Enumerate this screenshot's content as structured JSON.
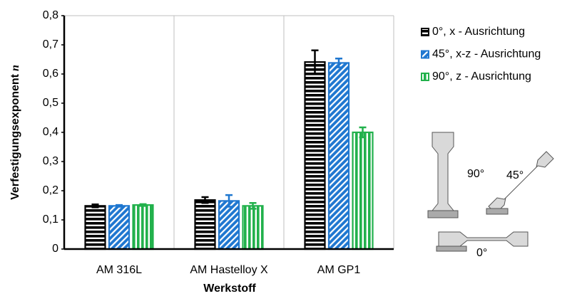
{
  "chart_data": {
    "type": "bar",
    "y_label": "Verfestigungsexponent",
    "y_label_symbol": "n",
    "x_label": "Werkstoff",
    "categories": [
      "AM 316L",
      "AM Hastelloy X",
      "AM GP1"
    ],
    "series": [
      {
        "name": "0°, x - Ausrichtung",
        "color": "#000000",
        "hatch": "horizontal",
        "values": [
          0.148,
          0.168,
          0.641
        ],
        "errors": [
          0.005,
          0.01,
          0.04
        ]
      },
      {
        "name": "45°, x-z - Ausrichtung",
        "color": "#1f77d0",
        "hatch": "diagonal",
        "values": [
          0.148,
          0.165,
          0.638
        ],
        "errors": [
          0.003,
          0.02,
          0.015
        ]
      },
      {
        "name": "90°, z - Ausrichtung",
        "color": "#22b14c",
        "hatch": "vertical",
        "values": [
          0.151,
          0.148,
          0.4
        ],
        "errors": [
          0.003,
          0.01,
          0.017
        ]
      }
    ],
    "ylim": [
      0,
      0.8
    ],
    "yticks": [
      {
        "value": 0,
        "label": "0"
      },
      {
        "value": 0.1,
        "label": "0,1"
      },
      {
        "value": 0.2,
        "label": "0,2"
      },
      {
        "value": 0.3,
        "label": "0,3"
      },
      {
        "value": 0.4,
        "label": "0,4"
      },
      {
        "value": 0.5,
        "label": "0,5"
      },
      {
        "value": 0.6,
        "label": "0,6"
      },
      {
        "value": 0.7,
        "label": "0,7"
      },
      {
        "value": 0.8,
        "label": "0,8"
      }
    ],
    "category_grid": true,
    "legend": "right",
    "diagram_labels": [
      "90°",
      "45°",
      "0°"
    ]
  }
}
